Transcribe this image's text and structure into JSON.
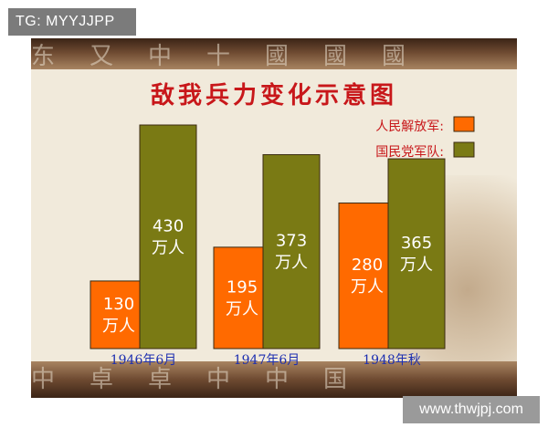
{
  "watermarks": {
    "top_left": "TG: MYYJJPP",
    "bottom_right": "www.thwjpj.com"
  },
  "colors": {
    "title": "#c8171a",
    "pla": "#ff6a00",
    "kmt": "#7a7a14",
    "category_text": "#1d2fb0",
    "label_text": "#ffffff"
  },
  "chart_data": {
    "type": "bar",
    "title": "敌我兵力变化示意图",
    "categories": [
      "1946年6月",
      "1947年6月",
      "1948年秋"
    ],
    "series": [
      {
        "name": "人民解放军:",
        "values": [
          130,
          195,
          280
        ],
        "labels": [
          "130",
          "195",
          "280"
        ],
        "unit": "万人",
        "color": "#ff6a00"
      },
      {
        "name": "国民党军队:",
        "values": [
          430,
          373,
          365
        ],
        "labels": [
          "430",
          "373",
          "365"
        ],
        "unit": "万人",
        "color": "#7a7a14"
      }
    ],
    "ylim": [
      0,
      430
    ],
    "legend_position": "top-right",
    "grid": false
  }
}
